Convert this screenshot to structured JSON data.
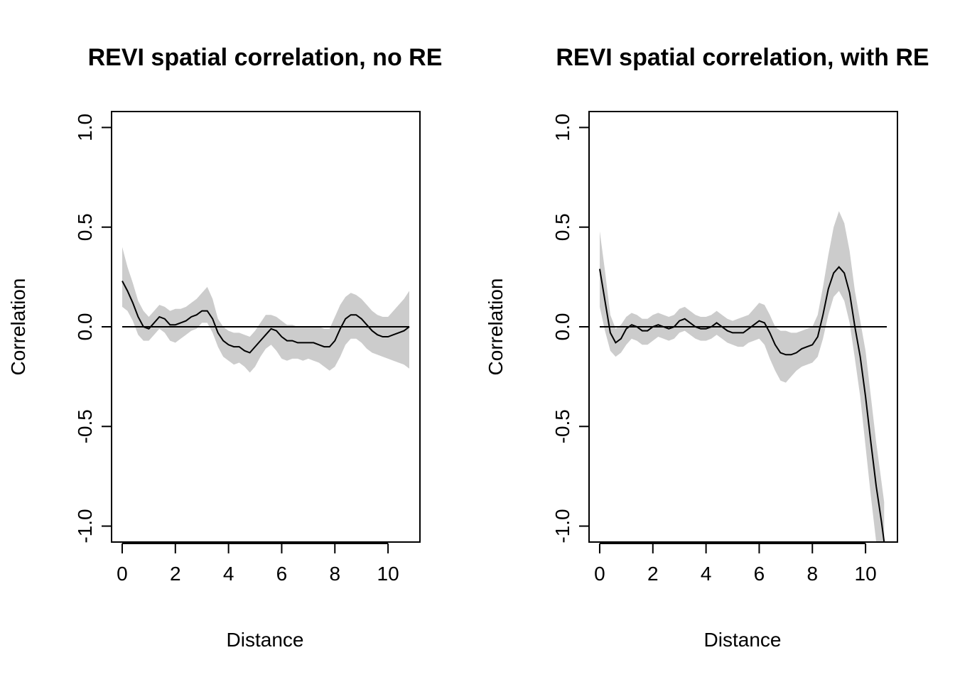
{
  "chart_data": [
    {
      "type": "line",
      "title": "REVI spatial correlation, no RE",
      "xlabel": "Distance",
      "ylabel": "Correlation",
      "xlim": [
        -0.4,
        11.2
      ],
      "ylim": [
        -1.08,
        1.08
      ],
      "x_ticks": [
        0,
        2,
        4,
        6,
        8,
        10
      ],
      "x_tick_labels": [
        "0",
        "2",
        "4",
        "6",
        "8",
        "10"
      ],
      "y_ticks": [
        -1.0,
        -0.5,
        0.0,
        0.5,
        1.0
      ],
      "y_tick_labels": [
        "-1.0",
        "-0.5",
        "0.0",
        "0.5",
        "1.0"
      ],
      "reference_line": {
        "y": 0,
        "x_range": [
          0,
          10.8
        ]
      },
      "band_color": "#cccccc",
      "line_color": "#000000",
      "series": [
        {
          "x": [
            0,
            0.2,
            0.4,
            0.6,
            0.8,
            1.0,
            1.2,
            1.4,
            1.6,
            1.8,
            2.0,
            2.2,
            2.4,
            2.6,
            2.8,
            3.0,
            3.2,
            3.4,
            3.6,
            3.8,
            4.0,
            4.2,
            4.4,
            4.6,
            4.8,
            5.0,
            5.2,
            5.4,
            5.6,
            5.8,
            6.0,
            6.2,
            6.4,
            6.6,
            6.8,
            7.0,
            7.2,
            7.4,
            7.6,
            7.8,
            8.0,
            8.2,
            8.4,
            8.6,
            8.8,
            9.0,
            9.2,
            9.4,
            9.6,
            9.8,
            10.0,
            10.2,
            10.4,
            10.6,
            10.8
          ],
          "y": [
            0.23,
            0.18,
            0.12,
            0.05,
            0.0,
            -0.01,
            0.02,
            0.05,
            0.04,
            0.01,
            0.01,
            0.02,
            0.03,
            0.05,
            0.06,
            0.08,
            0.08,
            0.04,
            -0.03,
            -0.07,
            -0.09,
            -0.1,
            -0.1,
            -0.12,
            -0.13,
            -0.1,
            -0.07,
            -0.04,
            -0.01,
            -0.02,
            -0.05,
            -0.07,
            -0.07,
            -0.08,
            -0.08,
            -0.08,
            -0.08,
            -0.09,
            -0.1,
            -0.1,
            -0.07,
            -0.01,
            0.04,
            0.06,
            0.06,
            0.04,
            0.01,
            -0.02,
            -0.04,
            -0.05,
            -0.05,
            -0.04,
            -0.03,
            -0.02,
            0.0
          ],
          "lower": [
            0.1,
            0.08,
            0.03,
            -0.04,
            -0.07,
            -0.07,
            -0.04,
            -0.01,
            -0.03,
            -0.07,
            -0.08,
            -0.06,
            -0.04,
            -0.02,
            -0.01,
            0.02,
            0.02,
            -0.03,
            -0.1,
            -0.15,
            -0.17,
            -0.19,
            -0.18,
            -0.2,
            -0.23,
            -0.2,
            -0.15,
            -0.11,
            -0.09,
            -0.12,
            -0.16,
            -0.17,
            -0.16,
            -0.16,
            -0.17,
            -0.16,
            -0.17,
            -0.18,
            -0.2,
            -0.22,
            -0.2,
            -0.15,
            -0.09,
            -0.06,
            -0.06,
            -0.08,
            -0.11,
            -0.13,
            -0.14,
            -0.15,
            -0.16,
            -0.17,
            -0.18,
            -0.19,
            -0.21
          ],
          "upper": [
            0.4,
            0.3,
            0.22,
            0.13,
            0.08,
            0.05,
            0.08,
            0.11,
            0.1,
            0.08,
            0.09,
            0.09,
            0.1,
            0.12,
            0.14,
            0.17,
            0.2,
            0.14,
            0.04,
            0.0,
            -0.02,
            -0.03,
            -0.03,
            -0.04,
            -0.05,
            -0.02,
            0.02,
            0.06,
            0.06,
            0.05,
            0.03,
            0.01,
            0.01,
            0.0,
            0.0,
            0.0,
            0.0,
            0.0,
            -0.01,
            -0.01,
            0.05,
            0.11,
            0.15,
            0.17,
            0.16,
            0.14,
            0.11,
            0.08,
            0.06,
            0.05,
            0.05,
            0.08,
            0.11,
            0.14,
            0.18
          ]
        }
      ]
    },
    {
      "type": "line",
      "title": "REVI spatial correlation, with RE",
      "xlabel": "Distance",
      "ylabel": "Correlation",
      "xlim": [
        -0.4,
        11.2
      ],
      "ylim": [
        -1.08,
        1.08
      ],
      "x_ticks": [
        0,
        2,
        4,
        6,
        8,
        10
      ],
      "x_tick_labels": [
        "0",
        "2",
        "4",
        "6",
        "8",
        "10"
      ],
      "y_ticks": [
        -1.0,
        -0.5,
        0.0,
        0.5,
        1.0
      ],
      "y_tick_labels": [
        "-1.0",
        "-0.5",
        "0.0",
        "0.5",
        "1.0"
      ],
      "reference_line": {
        "y": 0,
        "x_range": [
          0,
          10.8
        ]
      },
      "band_color": "#cccccc",
      "line_color": "#000000",
      "series": [
        {
          "x": [
            0,
            0.2,
            0.4,
            0.6,
            0.8,
            1.0,
            1.2,
            1.4,
            1.6,
            1.8,
            2.0,
            2.2,
            2.4,
            2.6,
            2.8,
            3.0,
            3.2,
            3.4,
            3.6,
            3.8,
            4.0,
            4.2,
            4.4,
            4.6,
            4.8,
            5.0,
            5.2,
            5.4,
            5.6,
            5.8,
            6.0,
            6.2,
            6.4,
            6.6,
            6.8,
            7.0,
            7.2,
            7.4,
            7.6,
            7.8,
            8.0,
            8.2,
            8.4,
            8.6,
            8.8,
            9.0,
            9.2,
            9.4,
            9.6,
            9.8,
            10.0,
            10.2,
            10.4,
            10.6,
            10.7
          ],
          "y": [
            0.29,
            0.13,
            -0.03,
            -0.08,
            -0.06,
            -0.01,
            0.01,
            0.0,
            -0.02,
            -0.02,
            0.0,
            0.01,
            0.0,
            -0.01,
            0.0,
            0.03,
            0.04,
            0.02,
            0.0,
            -0.01,
            -0.01,
            0.0,
            0.02,
            0.0,
            -0.02,
            -0.03,
            -0.03,
            -0.03,
            -0.01,
            0.01,
            0.03,
            0.02,
            -0.03,
            -0.09,
            -0.13,
            -0.14,
            -0.14,
            -0.13,
            -0.11,
            -0.1,
            -0.09,
            -0.05,
            0.06,
            0.19,
            0.27,
            0.3,
            0.27,
            0.17,
            0.0,
            -0.15,
            -0.35,
            -0.58,
            -0.8,
            -0.98,
            -1.08
          ],
          "lower": [
            0.1,
            -0.02,
            -0.12,
            -0.15,
            -0.13,
            -0.09,
            -0.06,
            -0.07,
            -0.09,
            -0.09,
            -0.07,
            -0.05,
            -0.06,
            -0.07,
            -0.06,
            -0.03,
            -0.02,
            -0.04,
            -0.06,
            -0.07,
            -0.07,
            -0.06,
            -0.04,
            -0.06,
            -0.08,
            -0.09,
            -0.1,
            -0.1,
            -0.08,
            -0.07,
            -0.06,
            -0.09,
            -0.16,
            -0.22,
            -0.27,
            -0.28,
            -0.25,
            -0.22,
            -0.2,
            -0.19,
            -0.18,
            -0.15,
            -0.06,
            0.06,
            0.15,
            0.18,
            0.13,
            0.02,
            -0.16,
            -0.35,
            -0.6,
            -0.85,
            -1.08,
            -1.08,
            -1.08
          ],
          "upper": [
            0.48,
            0.28,
            0.06,
            -0.01,
            0.01,
            0.05,
            0.07,
            0.06,
            0.04,
            0.04,
            0.06,
            0.07,
            0.06,
            0.05,
            0.06,
            0.09,
            0.1,
            0.08,
            0.06,
            0.05,
            0.05,
            0.06,
            0.08,
            0.06,
            0.04,
            0.03,
            0.04,
            0.05,
            0.06,
            0.09,
            0.12,
            0.11,
            0.06,
            0.0,
            -0.02,
            -0.02,
            -0.03,
            -0.03,
            -0.02,
            -0.01,
            0.0,
            0.06,
            0.2,
            0.36,
            0.5,
            0.58,
            0.52,
            0.38,
            0.18,
            0.03,
            -0.12,
            -0.35,
            -0.58,
            -0.78,
            -0.88
          ]
        }
      ]
    }
  ]
}
